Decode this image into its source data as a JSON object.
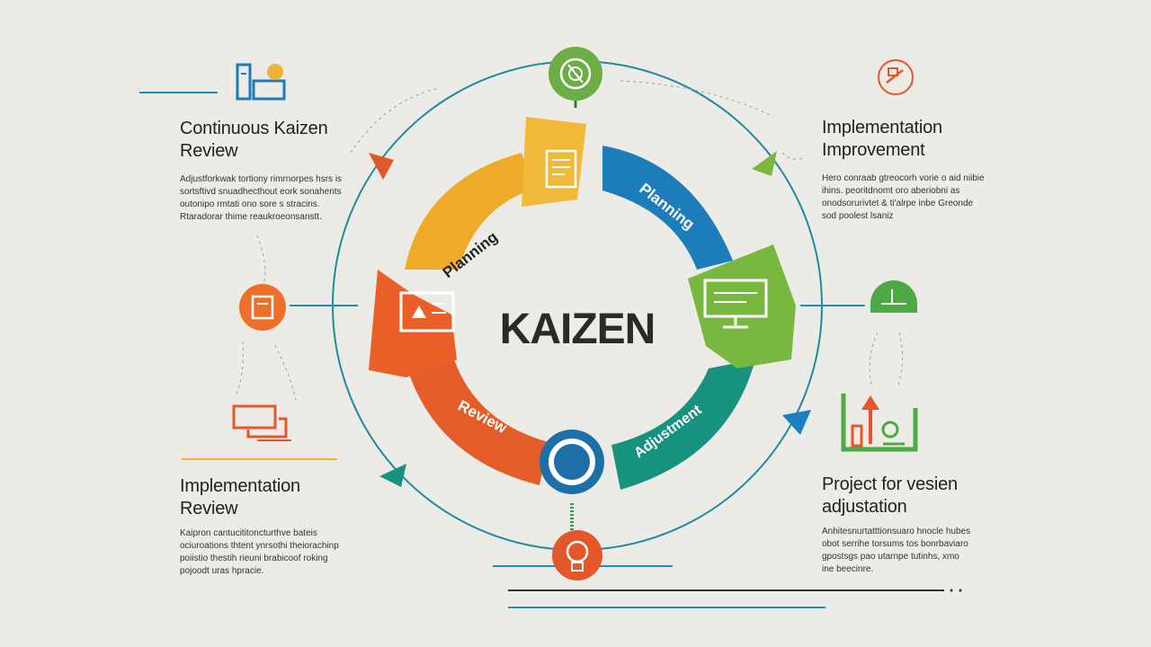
{
  "center_label": "KAIZEN",
  "cycle_stages": [
    {
      "label": "Planning",
      "color": "#efaa2a"
    },
    {
      "label": "Planning",
      "color": "#1d7dba"
    },
    {
      "label": "Adjustment",
      "color": "#17927f"
    },
    {
      "label": "Review",
      "color": "#e45d29"
    }
  ],
  "blocks": {
    "top_left": {
      "title_line1": "Continuous Kaizen",
      "title_line2": "Review",
      "text_lines": [
        "Adjustforkwak tortiony rimrnorpes hsrs is",
        "sortsftivd snuadhecthout eork sonahents",
        "outonipo rmtati ono sore s stracins.",
        "Rtaradorar thime reaukroeonsanstt."
      ]
    },
    "top_right": {
      "title_line1": "Implementation",
      "title_line2": "Improvement",
      "text_lines": [
        "Hero conraab gtreocorh vorie o aid niibie",
        "ihins. peoritdnomt oro aberiobni as",
        "onodsorurivtet & ti'alrpe inbe Greonde",
        "sod poolest lsaniz"
      ]
    },
    "bottom_left": {
      "title_line1": "Implementation",
      "title_line2": "Review",
      "text_lines": [
        "Kaipron cantucititoncturthve bateis",
        "ociuroations thtent ynrsothi theiorachinp",
        "poiistio thestih rieuni brabicoof roking",
        "pojoodt uras hpracie."
      ]
    },
    "bottom_right": {
      "title_line1": "Project for vesien",
      "title_line2": "adjustation",
      "text_lines": [
        "Anhitesnurtatttionsuaro hnocle hubes",
        "obot serrihe torsums tos bonrbaviaro",
        "gpostsgs pao utarnpe tutinhs, xmo",
        "ine beecinre."
      ]
    }
  },
  "icons": {
    "top": "target-lightbulb-icon",
    "bottom": "gear-lightbulb-icon",
    "left": "document-icon",
    "right": "chart-icon",
    "top_left": "documents-clock-icon",
    "top_right": "tools-icon",
    "mid_left": "panel-icon",
    "mid_right": "monitor-icon",
    "low_left": "screens-icon",
    "low_right": "growth-chart-icon"
  }
}
